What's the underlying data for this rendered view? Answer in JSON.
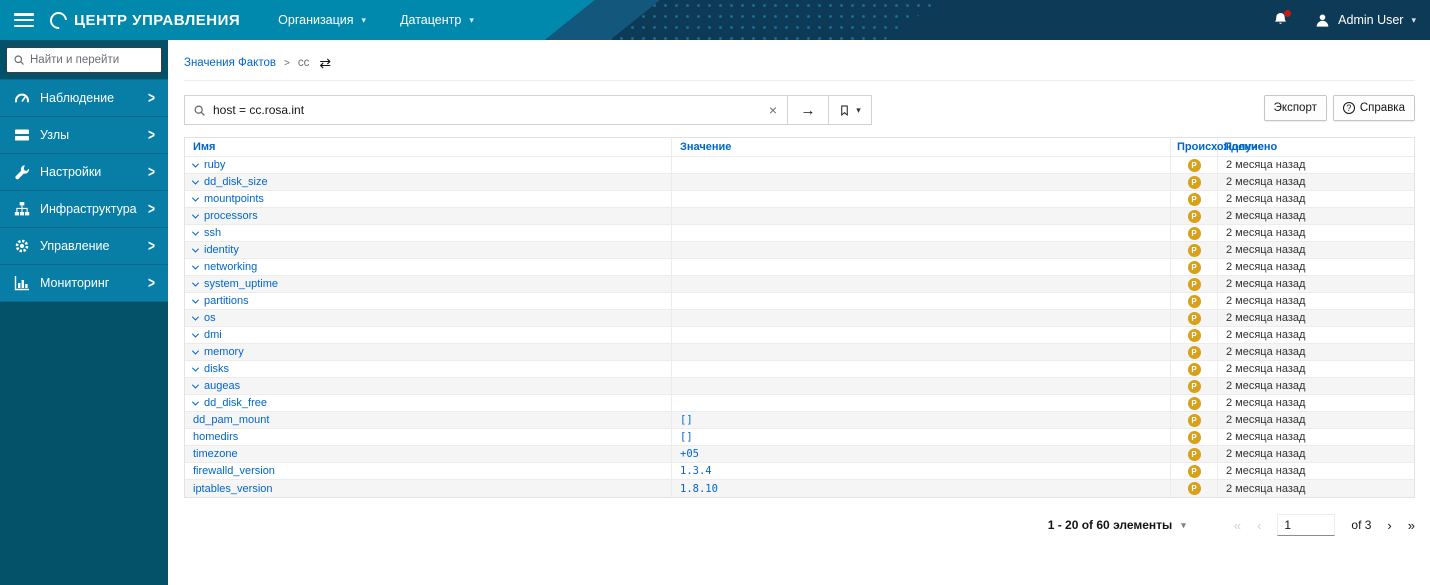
{
  "colors": {
    "navbar_teal": "#0088ad",
    "navbar_dark": "#0d3a56",
    "sidebar_menu": "#087ea6",
    "sidebar_bottom": "#045269",
    "link_blue": "#0066cc",
    "badge_orange": "#d9a019",
    "notification_red": "#c9190b"
  },
  "navbar": {
    "brand": "ЦЕНТР УПРАВЛЕНИЯ",
    "menus": [
      {
        "label": "Организация"
      },
      {
        "label": "Датацентр"
      }
    ],
    "user_label": "Admin User"
  },
  "sidebar": {
    "search_placeholder": "Найти и перейти",
    "items": [
      {
        "icon": "gauge-icon",
        "label": "Наблюдение"
      },
      {
        "icon": "server-icon",
        "label": "Узлы"
      },
      {
        "icon": "wrench-icon",
        "label": "Настройки"
      },
      {
        "icon": "sitemap-icon",
        "label": "Инфраструктура"
      },
      {
        "icon": "gear-icon",
        "label": "Управление"
      },
      {
        "icon": "chart-icon",
        "label": "Мониторинг"
      }
    ]
  },
  "breadcrumb": {
    "root": "Значения Фактов",
    "current": "cc"
  },
  "toolbar": {
    "search_value": "host = cc.rosa.int",
    "export_label": "Экспорт",
    "help_label": "Справка"
  },
  "table": {
    "columns": {
      "name": "Имя",
      "value": "Значение",
      "origin": "Происхождение",
      "received": "Получено"
    },
    "rows": [
      {
        "name": "ruby",
        "expandable": true,
        "value": "",
        "origin": "P",
        "received": "2 месяца назад"
      },
      {
        "name": "dd_disk_size",
        "expandable": true,
        "value": "",
        "origin": "P",
        "received": "2 месяца назад"
      },
      {
        "name": "mountpoints",
        "expandable": true,
        "value": "",
        "origin": "P",
        "received": "2 месяца назад"
      },
      {
        "name": "processors",
        "expandable": true,
        "value": "",
        "origin": "P",
        "received": "2 месяца назад"
      },
      {
        "name": "ssh",
        "expandable": true,
        "value": "",
        "origin": "P",
        "received": "2 месяца назад"
      },
      {
        "name": "identity",
        "expandable": true,
        "value": "",
        "origin": "P",
        "received": "2 месяца назад"
      },
      {
        "name": "networking",
        "expandable": true,
        "value": "",
        "origin": "P",
        "received": "2 месяца назад"
      },
      {
        "name": "system_uptime",
        "expandable": true,
        "value": "",
        "origin": "P",
        "received": "2 месяца назад"
      },
      {
        "name": "partitions",
        "expandable": true,
        "value": "",
        "origin": "P",
        "received": "2 месяца назад"
      },
      {
        "name": "os",
        "expandable": true,
        "value": "",
        "origin": "P",
        "received": "2 месяца назад"
      },
      {
        "name": "dmi",
        "expandable": true,
        "value": "",
        "origin": "P",
        "received": "2 месяца назад"
      },
      {
        "name": "memory",
        "expandable": true,
        "value": "",
        "origin": "P",
        "received": "2 месяца назад"
      },
      {
        "name": "disks",
        "expandable": true,
        "value": "",
        "origin": "P",
        "received": "2 месяца назад"
      },
      {
        "name": "augeas",
        "expandable": true,
        "value": "",
        "origin": "P",
        "received": "2 месяца назад"
      },
      {
        "name": "dd_disk_free",
        "expandable": true,
        "value": "",
        "origin": "P",
        "received": "2 месяца назад"
      },
      {
        "name": "dd_pam_mount",
        "expandable": false,
        "value": "[]",
        "origin": "P",
        "received": "2 месяца назад"
      },
      {
        "name": "homedirs",
        "expandable": false,
        "value": "[]",
        "origin": "P",
        "received": "2 месяца назад"
      },
      {
        "name": "timezone",
        "expandable": false,
        "value": "+05",
        "origin": "P",
        "received": "2 месяца назад"
      },
      {
        "name": "firewalld_version",
        "expandable": false,
        "value": "1.3.4",
        "origin": "P",
        "received": "2 месяца назад"
      },
      {
        "name": "iptables_version",
        "expandable": false,
        "value": "1.8.10",
        "origin": "P",
        "received": "2 месяца назад"
      }
    ]
  },
  "pagination": {
    "summary": "1 - 20 of 60 элементы",
    "page": "1",
    "of_label": "of 3"
  }
}
